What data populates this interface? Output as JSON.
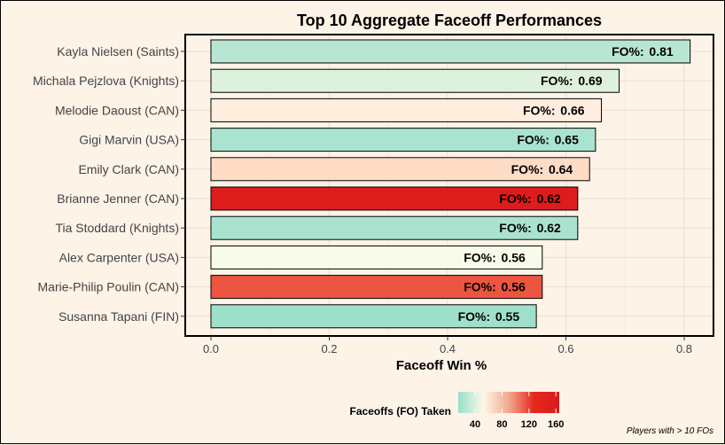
{
  "chart_data": {
    "type": "bar",
    "orientation": "horizontal",
    "title": "Top 10 Aggregate Faceoff Performances",
    "xlabel": "Faceoff Win %",
    "ylabel": "",
    "xlim": [
      0,
      0.8
    ],
    "xticks": [
      "0.0",
      "0.2",
      "0.4",
      "0.6",
      "0.8"
    ],
    "grid": true,
    "bar_label_prefix": "FO%:",
    "categories": [
      "Kayla Nielsen (Saints)",
      "Michala Pejzlova (Knights)",
      "Melodie Daoust (CAN)",
      "Gigi Marvin (USA)",
      "Emily Clark (CAN)",
      "Brianne Jenner (CAN)",
      "Tia Stoddard (Knights)",
      "Alex Carpenter (USA)",
      "Marie-Philip Poulin (CAN)",
      "Susanna Tapani (FIN)"
    ],
    "values": [
      0.81,
      0.69,
      0.66,
      0.65,
      0.64,
      0.62,
      0.62,
      0.56,
      0.56,
      0.55
    ],
    "value_labels": [
      "0.81",
      "0.69",
      "0.66",
      "0.65",
      "0.64",
      "0.62",
      "0.62",
      "0.56",
      "0.56",
      "0.55"
    ],
    "fill_colors": [
      "#b9e6d3",
      "#ddf1dc",
      "#ffeedd",
      "#aae3cf",
      "#ffdcc6",
      "#dd1c1c",
      "#a9e3cf",
      "#f7fbe9",
      "#ec5540",
      "#9fe0cb"
    ],
    "legend": {
      "title": "Faceoffs (FO) Taken",
      "position": "bottom",
      "ticks": [
        "40",
        "80",
        "120",
        "160"
      ],
      "gradient": [
        "#99dfca",
        "#fdf8e6",
        "#f3a88f",
        "#e5291f",
        "#d91a1a"
      ]
    },
    "caption": "Players with > 10 FOs"
  }
}
